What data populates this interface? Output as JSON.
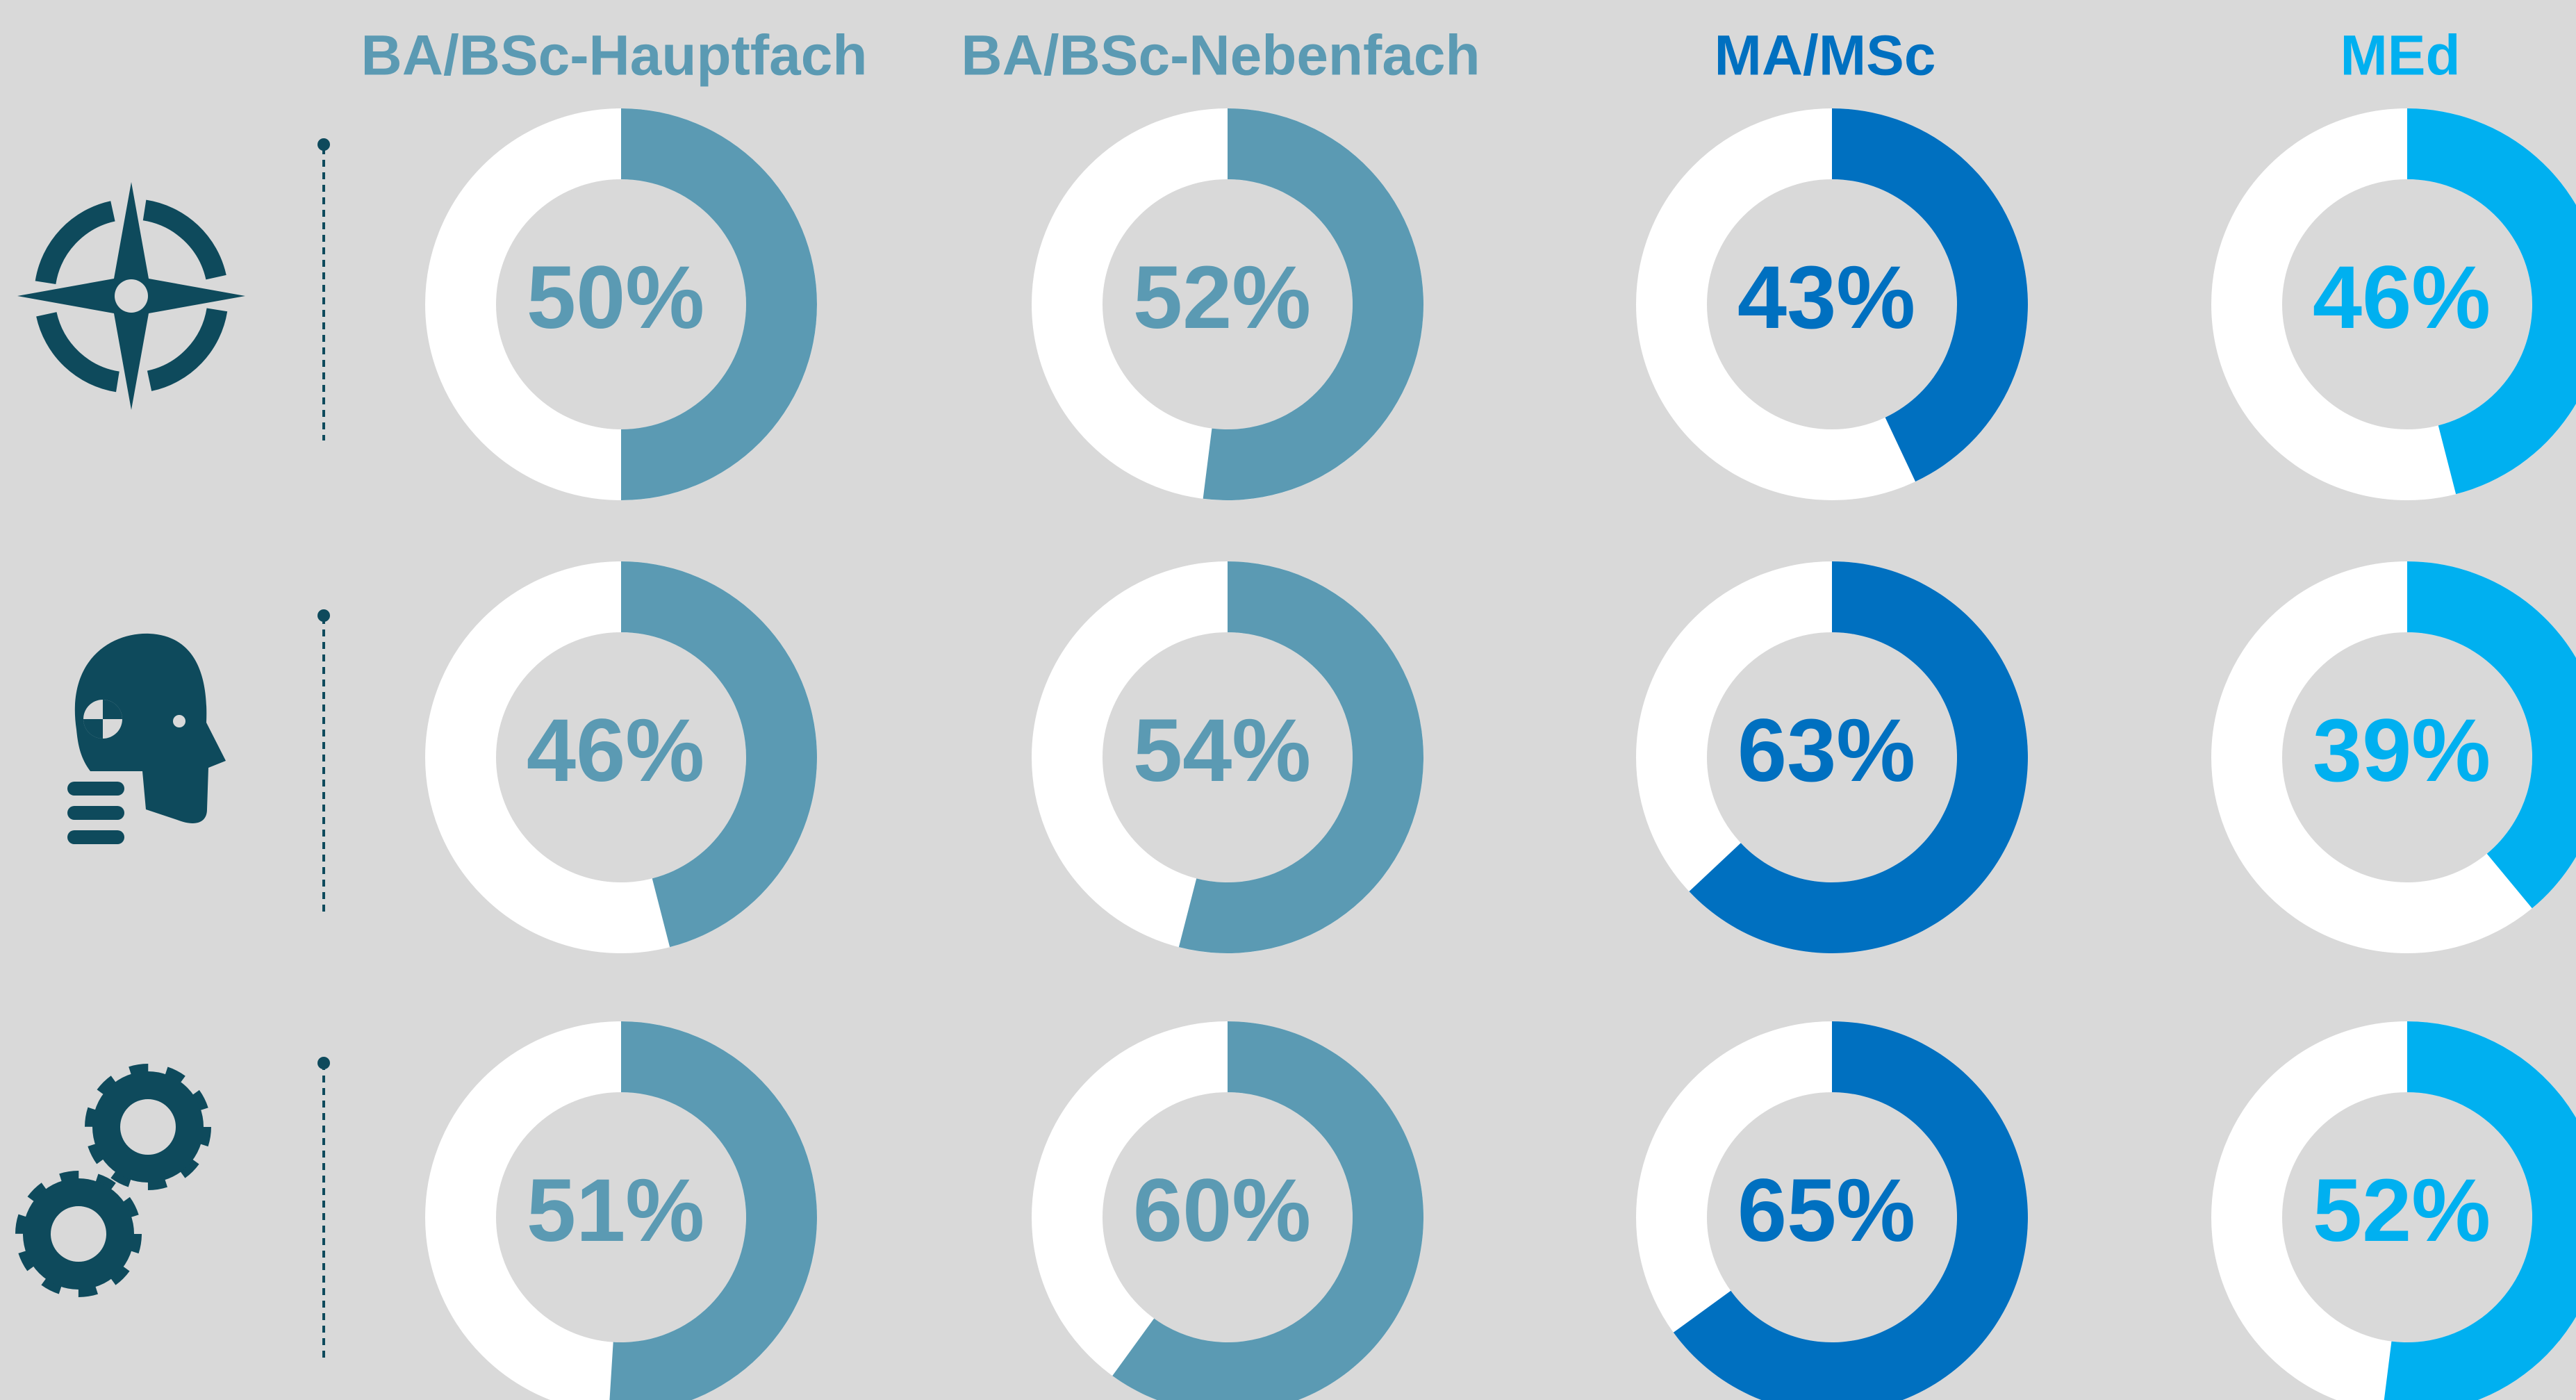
{
  "chart_data": {
    "type": "donut",
    "series": [
      {
        "name": "BA/BSc-Hauptfach",
        "color": "#5b9ab3",
        "values": [
          50,
          46,
          51
        ],
        "value_labels": [
          "50%",
          "46%",
          "51%"
        ]
      },
      {
        "name": "BA/BSc-Nebenfach",
        "color": "#5b9ab3",
        "values": [
          52,
          54,
          60
        ],
        "value_labels": [
          "52%",
          "54%",
          "60%"
        ]
      },
      {
        "name": "MA/MSc",
        "color": "#0070c0",
        "values": [
          43,
          63,
          65
        ],
        "value_labels": [
          "43%",
          "63%",
          "65%"
        ]
      },
      {
        "name": "MEd",
        "color": "#00b0f0",
        "values": [
          46,
          39,
          52
        ],
        "value_labels": [
          "46%",
          "39%",
          "52%"
        ]
      }
    ]
  }
}
